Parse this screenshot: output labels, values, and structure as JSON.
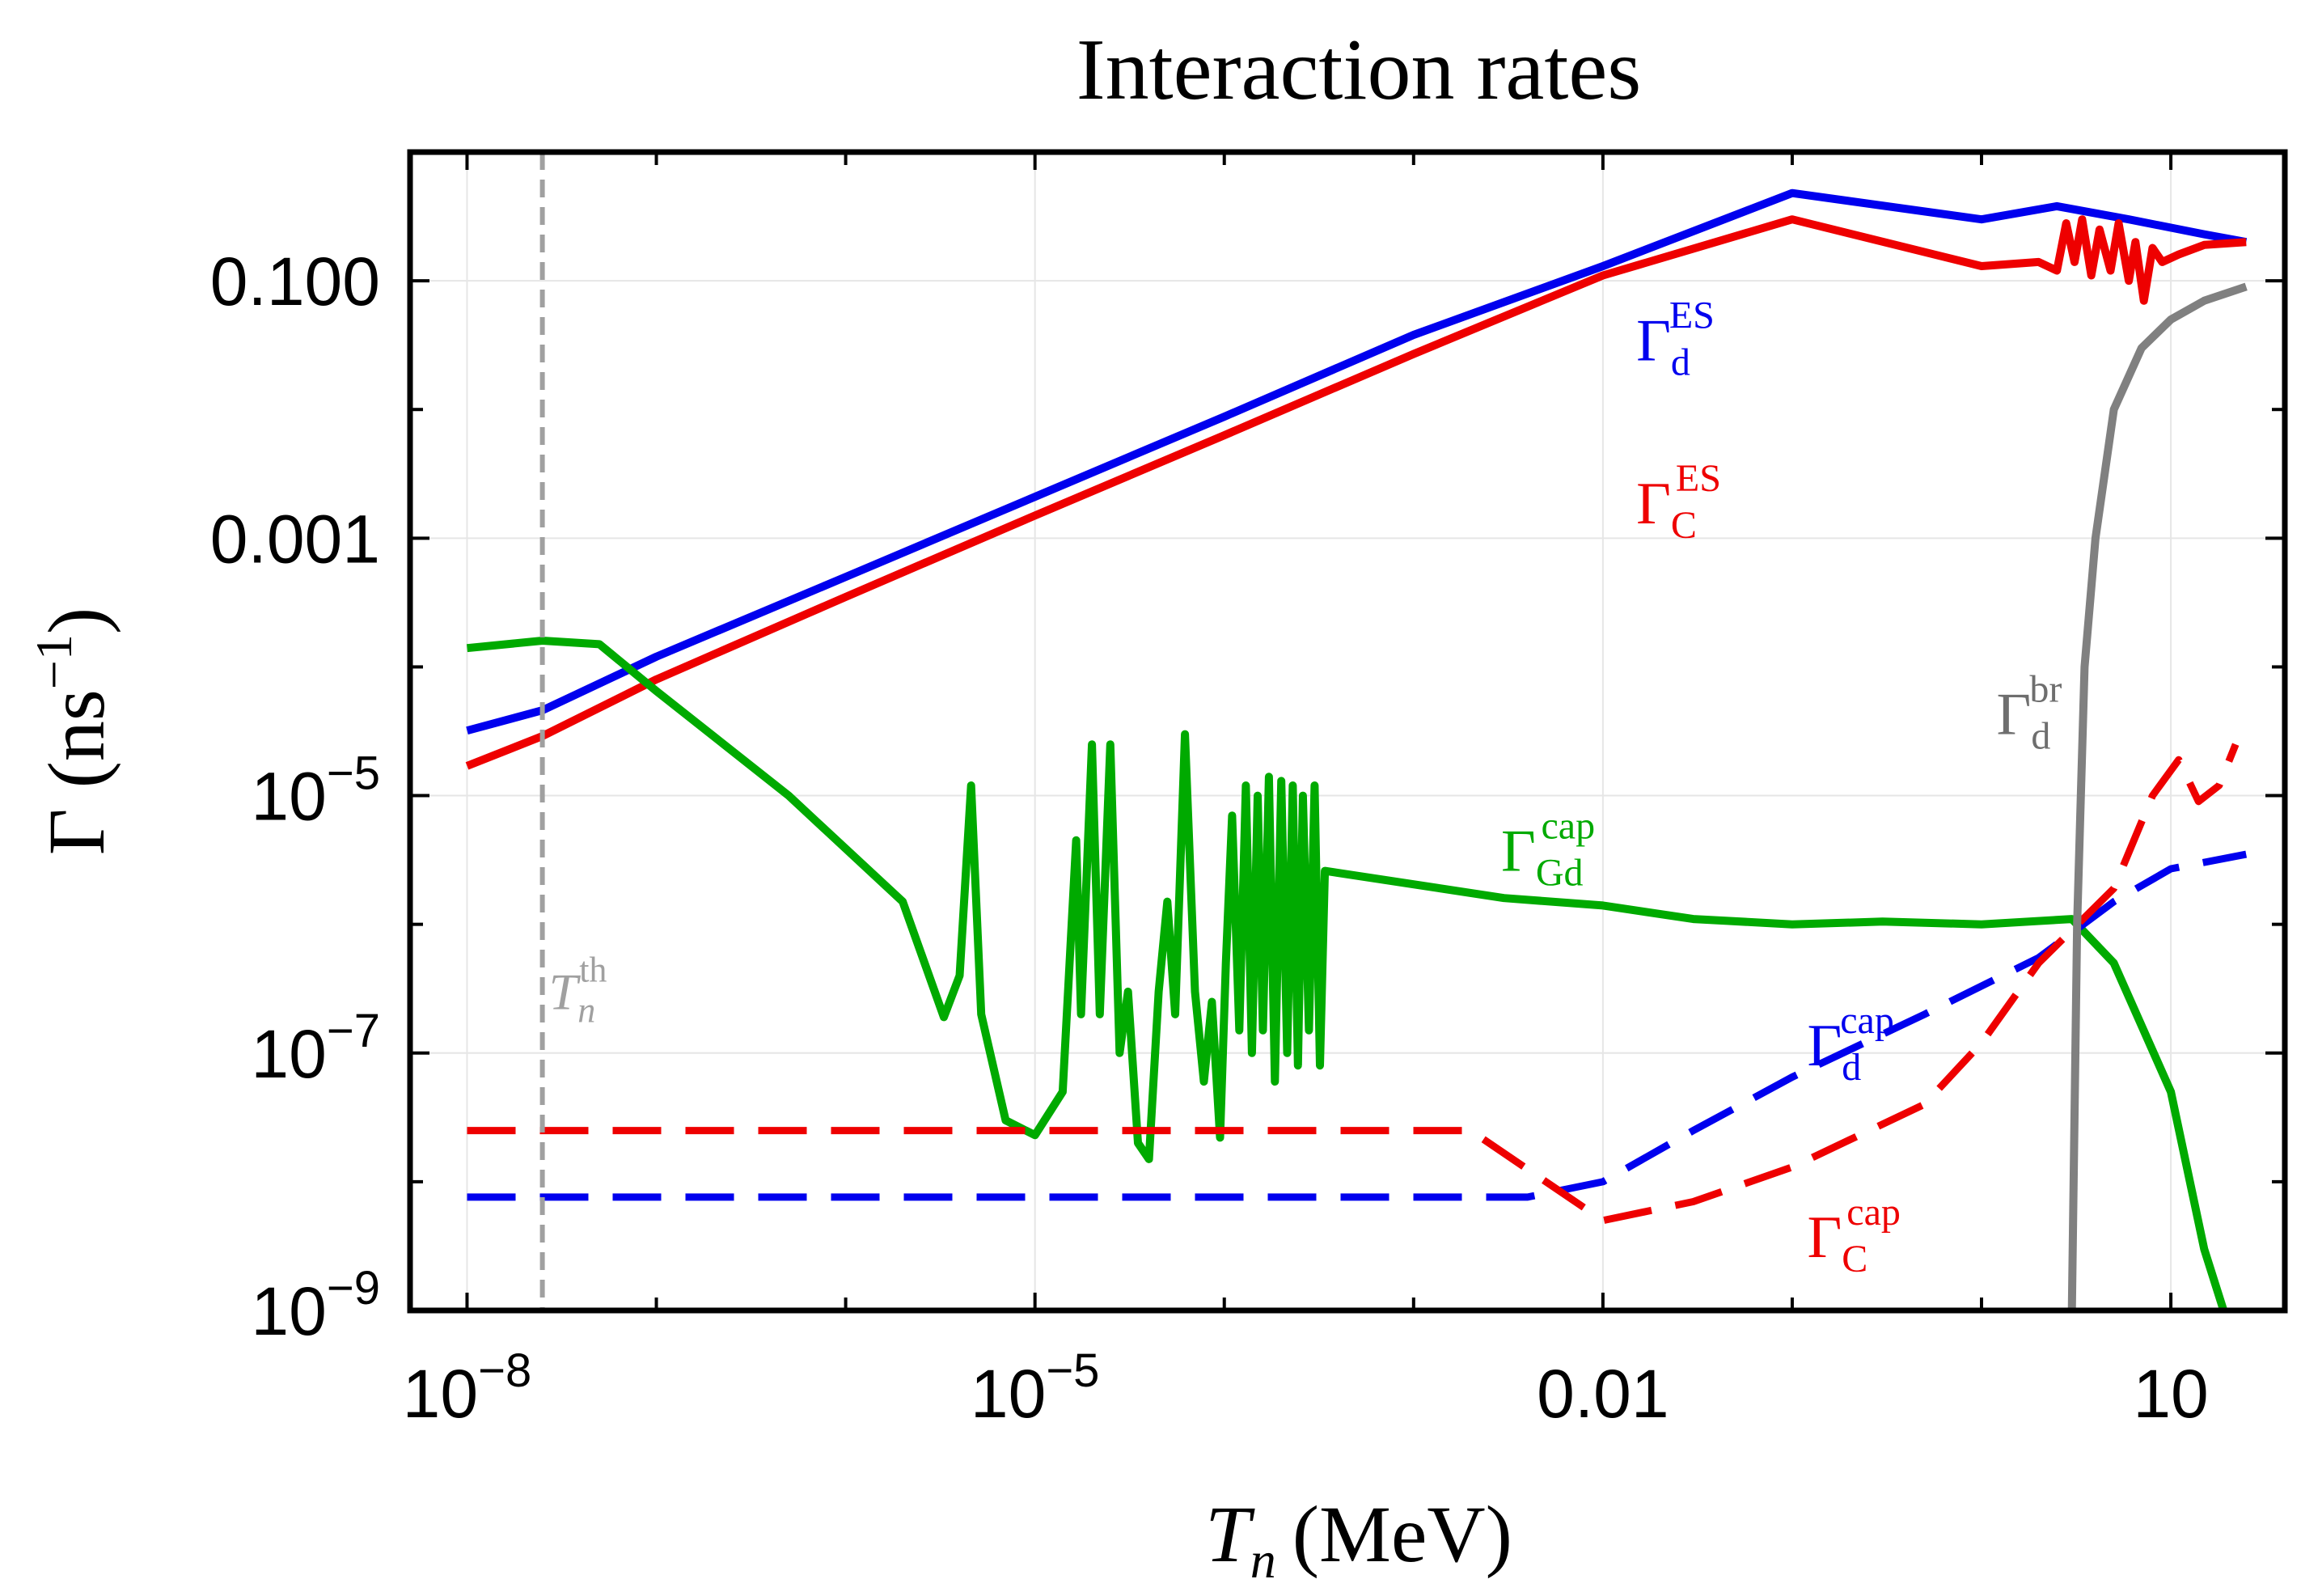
{
  "chart_data": {
    "type": "line",
    "title": "Interaction rates",
    "xlabel": {
      "main": "T",
      "sub": "n",
      "unit": "(MeV)"
    },
    "ylabel": {
      "main": "Γ (ns",
      "sup": "−1",
      "close": ")"
    },
    "x_scale": "log",
    "y_scale": "log",
    "xlim": [
      5e-09,
      40
    ],
    "ylim": [
      1e-09,
      1.0
    ],
    "grid": true,
    "x_ticks": [
      {
        "value": 1e-08,
        "base": "10",
        "exp": "−8"
      },
      {
        "value": 1e-05,
        "base": "10",
        "exp": "−5"
      },
      {
        "value": 0.01,
        "text": "0.01"
      },
      {
        "value": 10,
        "text": "10"
      }
    ],
    "y_ticks": [
      {
        "value": 1e-09,
        "base": "10",
        "exp": "−9"
      },
      {
        "value": 1e-07,
        "base": "10",
        "exp": "−7"
      },
      {
        "value": 1e-05,
        "base": "10",
        "exp": "−5"
      },
      {
        "value": 0.001,
        "text": "0.001"
      },
      {
        "value": 0.1,
        "text": "0.100"
      }
    ],
    "threshold": {
      "value": 2.5e-08,
      "label_main": "T",
      "label_sub": "n",
      "label_sup": "th",
      "color": "#a0a0a0"
    },
    "series": [
      {
        "name_main": "Γ",
        "name_sub": "d",
        "name_sup": "ES",
        "color": "#0000ee",
        "style": "solid",
        "points": [
          [
            1e-08,
            3.2e-05
          ],
          [
            2.5e-08,
            4.6e-05
          ],
          [
            1e-07,
            0.00012
          ],
          [
            1e-06,
            0.0005
          ],
          [
            1e-05,
            0.0021
          ],
          [
            0.0001,
            0.0088
          ],
          [
            0.001,
            0.038
          ],
          [
            0.01,
            0.13
          ],
          [
            0.1,
            0.48
          ],
          [
            1,
            0.3
          ],
          [
            2.5,
            0.38
          ],
          [
            6,
            0.3
          ],
          [
            15,
            0.23
          ],
          [
            25,
            0.2
          ]
        ]
      },
      {
        "name_main": "Γ",
        "name_sub": "C",
        "name_sup": "ES",
        "color": "#ee0000",
        "style": "solid",
        "points": [
          [
            1e-08,
            1.7e-05
          ],
          [
            2.5e-08,
            2.9e-05
          ],
          [
            1e-07,
            8e-05
          ],
          [
            1e-06,
            0.00035
          ],
          [
            1e-05,
            0.0015
          ],
          [
            0.0001,
            0.0063
          ],
          [
            0.001,
            0.027
          ],
          [
            0.01,
            0.11
          ],
          [
            0.1,
            0.3
          ],
          [
            1,
            0.13
          ],
          [
            2,
            0.14
          ],
          [
            2.5,
            0.12
          ],
          [
            2.8,
            0.28
          ],
          [
            3.1,
            0.14
          ],
          [
            3.4,
            0.3
          ],
          [
            3.8,
            0.11
          ],
          [
            4.2,
            0.25
          ],
          [
            4.8,
            0.12
          ],
          [
            5.3,
            0.28
          ],
          [
            6,
            0.1
          ],
          [
            6.5,
            0.2
          ],
          [
            7.2,
            0.07
          ],
          [
            8,
            0.18
          ],
          [
            9,
            0.14
          ],
          [
            11,
            0.16
          ],
          [
            15,
            0.19
          ],
          [
            25,
            0.2
          ]
        ]
      },
      {
        "name_main": "Γ",
        "name_sub": "Gd",
        "name_sup": "cap",
        "color": "#00aa00",
        "style": "solid",
        "points": [
          [
            1e-08,
            0.00014
          ],
          [
            2.5e-08,
            0.00016
          ],
          [
            5e-08,
            0.00015
          ],
          [
            1e-07,
            6.5e-05
          ],
          [
            5e-07,
            1e-05
          ],
          [
            2e-06,
            1.5e-06
          ],
          [
            3.3e-06,
            1.9e-07
          ],
          [
            4e-06,
            4e-07
          ],
          [
            4.6e-06,
            1.2e-05
          ],
          [
            5.2e-06,
            2e-07
          ],
          [
            7e-06,
            3e-08
          ],
          [
            1e-05,
            2.3e-08
          ],
          [
            1.4e-05,
            5e-08
          ],
          [
            1.65e-05,
            4.5e-06
          ],
          [
            1.75e-05,
            2e-07
          ],
          [
            2e-05,
            2.5e-05
          ],
          [
            2.2e-05,
            2e-07
          ],
          [
            2.5e-05,
            2.5e-05
          ],
          [
            2.8e-05,
            1e-07
          ],
          [
            3.1e-05,
            3e-07
          ],
          [
            3.5e-05,
            2e-08
          ],
          [
            4e-05,
            1.5e-08
          ],
          [
            4.5e-05,
            3e-07
          ],
          [
            5e-05,
            1.5e-06
          ],
          [
            5.5e-05,
            2e-07
          ],
          [
            6.2e-05,
            3e-05
          ],
          [
            7e-05,
            3e-07
          ],
          [
            7.8e-05,
            6e-08
          ],
          [
            8.6e-05,
            2.5e-07
          ],
          [
            9.5e-05,
            2.2e-08
          ],
          [
            0.000102,
            5e-07
          ],
          [
            0.00011,
            7e-06
          ],
          [
            0.00012,
            1.5e-07
          ],
          [
            0.00013,
            1.2e-05
          ],
          [
            0.00014,
            1e-07
          ],
          [
            0.00015,
            1e-05
          ],
          [
            0.00016,
            1.5e-07
          ],
          [
            0.000172,
            1.4e-05
          ],
          [
            0.000185,
            6e-08
          ],
          [
            0.0002,
            1.3e-05
          ],
          [
            0.000215,
            1e-07
          ],
          [
            0.00023,
            1.2e-05
          ],
          [
            0.000245,
            8e-08
          ],
          [
            0.00026,
            1e-05
          ],
          [
            0.00028,
            1.5e-07
          ],
          [
            0.0003,
            1.2e-05
          ],
          [
            0.00032,
            8e-08
          ],
          [
            0.00034,
            2.6e-06
          ],
          [
            0.003,
            1.6e-06
          ],
          [
            0.01,
            1.4e-06
          ],
          [
            0.03,
            1.1e-06
          ],
          [
            0.1,
            1e-06
          ],
          [
            0.3,
            1.05e-06
          ],
          [
            1,
            1e-06
          ],
          [
            3,
            1.1e-06
          ],
          [
            5,
            5e-07
          ],
          [
            10,
            5e-08
          ],
          [
            15,
            3e-09
          ],
          [
            19,
            1e-09
          ]
        ]
      },
      {
        "name_main": "Γ",
        "name_sub": "d",
        "name_sup": "cap",
        "color": "#0000ee",
        "style": "dashed",
        "points": [
          [
            1e-08,
            7.6e-09
          ],
          [
            1e-07,
            7.6e-09
          ],
          [
            1e-06,
            7.6e-09
          ],
          [
            1e-05,
            7.6e-09
          ],
          [
            0.0001,
            7.6e-09
          ],
          [
            0.001,
            7.6e-09
          ],
          [
            0.004,
            7.6e-09
          ],
          [
            0.01,
            1e-08
          ],
          [
            0.03,
            2.5e-08
          ],
          [
            0.1,
            6.5e-08
          ],
          [
            0.5,
            2e-07
          ],
          [
            2,
            5.5e-07
          ],
          [
            5,
            1.5e-06
          ],
          [
            10,
            2.7e-06
          ],
          [
            25,
            3.5e-06
          ]
        ]
      },
      {
        "name_main": "Γ",
        "name_sub": "C",
        "name_sup": "cap",
        "color": "#ee0000",
        "style": "dashed",
        "points": [
          [
            1e-08,
            2.5e-08
          ],
          [
            1e-07,
            2.5e-08
          ],
          [
            1e-06,
            2.5e-08
          ],
          [
            1e-05,
            2.5e-08
          ],
          [
            0.0001,
            2.5e-08
          ],
          [
            0.001,
            2.5e-08
          ],
          [
            0.002,
            2.5e-08
          ],
          [
            0.01,
            5e-09
          ],
          [
            0.03,
            7e-09
          ],
          [
            0.1,
            1.3e-08
          ],
          [
            0.5,
            4e-08
          ],
          [
            1,
            1.2e-07
          ],
          [
            2,
            5e-07
          ],
          [
            5,
            1.9e-06
          ],
          [
            8,
            1e-05
          ],
          [
            11,
            1.9e-05
          ],
          [
            14,
            9e-06
          ],
          [
            18,
            1.2e-05
          ],
          [
            22,
            2.5e-05
          ]
        ]
      },
      {
        "name_main": "Γ",
        "name_sub": "d",
        "name_sup": "br",
        "color": "#808080",
        "style": "solid",
        "points": [
          [
            3,
            1e-09
          ],
          [
            3.2,
            1e-06
          ],
          [
            3.5,
            0.0001
          ],
          [
            4,
            0.001
          ],
          [
            5,
            0.01
          ],
          [
            7,
            0.03
          ],
          [
            10,
            0.05
          ],
          [
            15,
            0.07
          ],
          [
            25,
            0.09
          ]
        ]
      }
    ]
  }
}
